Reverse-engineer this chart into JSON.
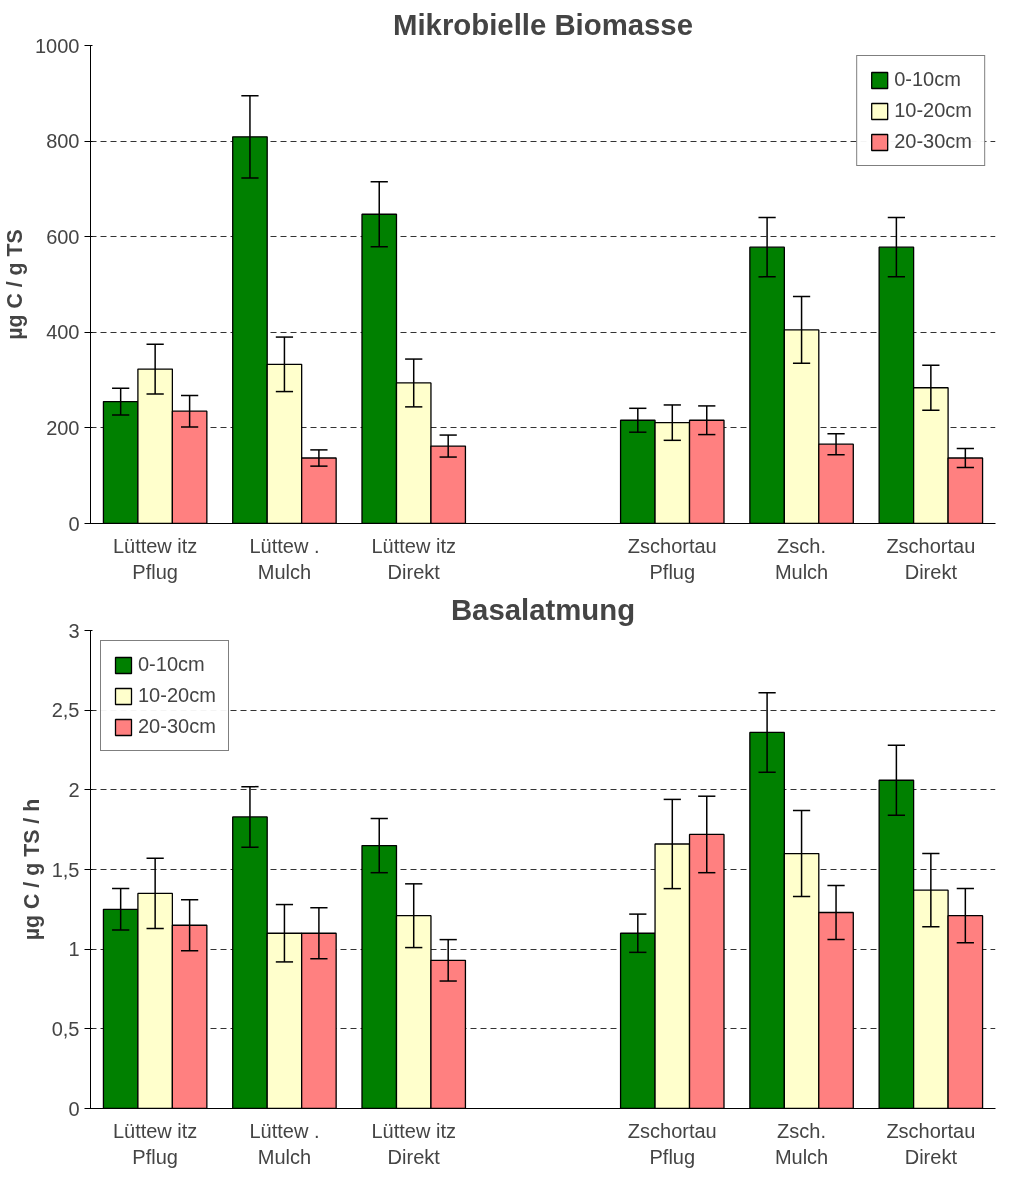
{
  "chart_data": [
    {
      "type": "bar",
      "title": "Mikrobielle Biomasse",
      "ylabel": "µg C / g TS",
      "categories": [
        "Lüttew itz\nPflug",
        "Lüttew .\nMulch",
        "Lüttew itz\nDirekt",
        null,
        "Zschortau\nPflug",
        "Zsch.\nMulch",
        "Zschortau\nDirekt"
      ],
      "series": [
        {
          "name": "0-10cm",
          "color": "#008000",
          "values": [
            255,
            809,
            647,
            null,
            216,
            578,
            578
          ],
          "errors": [
            28,
            86,
            68,
            null,
            25,
            62,
            62
          ]
        },
        {
          "name": "10-20cm",
          "color": "#ffffcc",
          "values": [
            323,
            333,
            294,
            null,
            211,
            405,
            284
          ],
          "errors": [
            52,
            57,
            50,
            null,
            37,
            70,
            47
          ]
        },
        {
          "name": "20-30cm",
          "color": "#ff8080",
          "values": [
            235,
            137,
            162,
            null,
            216,
            166,
            137
          ],
          "errors": [
            33,
            17,
            23,
            null,
            30,
            22,
            20
          ]
        }
      ],
      "ylim": [
        0,
        1000
      ],
      "yticks": [
        0,
        200,
        400,
        600,
        800,
        1000
      ],
      "grid": "y",
      "legend": "top right"
    },
    {
      "type": "bar",
      "title": "Basalatmung",
      "ylabel": "µg C / g TS / h",
      "categories": [
        "Lüttew itz\nPflug",
        "Lüttew .\nMulch",
        "Lüttew itz\nDirekt",
        null,
        "Zschortau\nPflug",
        "Zsch.\nMulch",
        "Zschortau\nDirekt"
      ],
      "series": [
        {
          "name": "0-10cm",
          "color": "#008000",
          "values": [
            1.25,
            1.83,
            1.65,
            null,
            1.1,
            2.36,
            2.06
          ],
          "errors": [
            0.13,
            0.19,
            0.17,
            null,
            0.12,
            0.25,
            0.22
          ]
        },
        {
          "name": "10-20cm",
          "color": "#ffffcc",
          "values": [
            1.35,
            1.1,
            1.21,
            null,
            1.66,
            1.6,
            1.37
          ],
          "errors": [
            0.22,
            0.18,
            0.2,
            null,
            0.28,
            0.27,
            0.23
          ]
        },
        {
          "name": "20-30cm",
          "color": "#ff8080",
          "values": [
            1.15,
            1.1,
            0.93,
            null,
            1.72,
            1.23,
            1.21
          ],
          "errors": [
            0.16,
            0.16,
            0.13,
            null,
            0.24,
            0.17,
            0.17
          ]
        }
      ],
      "ylim": [
        0,
        3
      ],
      "yticks": [
        0,
        {
          "value": 0.5,
          "label": "0,5"
        },
        1,
        {
          "value": 1.5,
          "label": "1,5"
        },
        2,
        {
          "value": 2.5,
          "label": "2,5"
        },
        3
      ],
      "grid": "y",
      "legend": "top left"
    }
  ]
}
